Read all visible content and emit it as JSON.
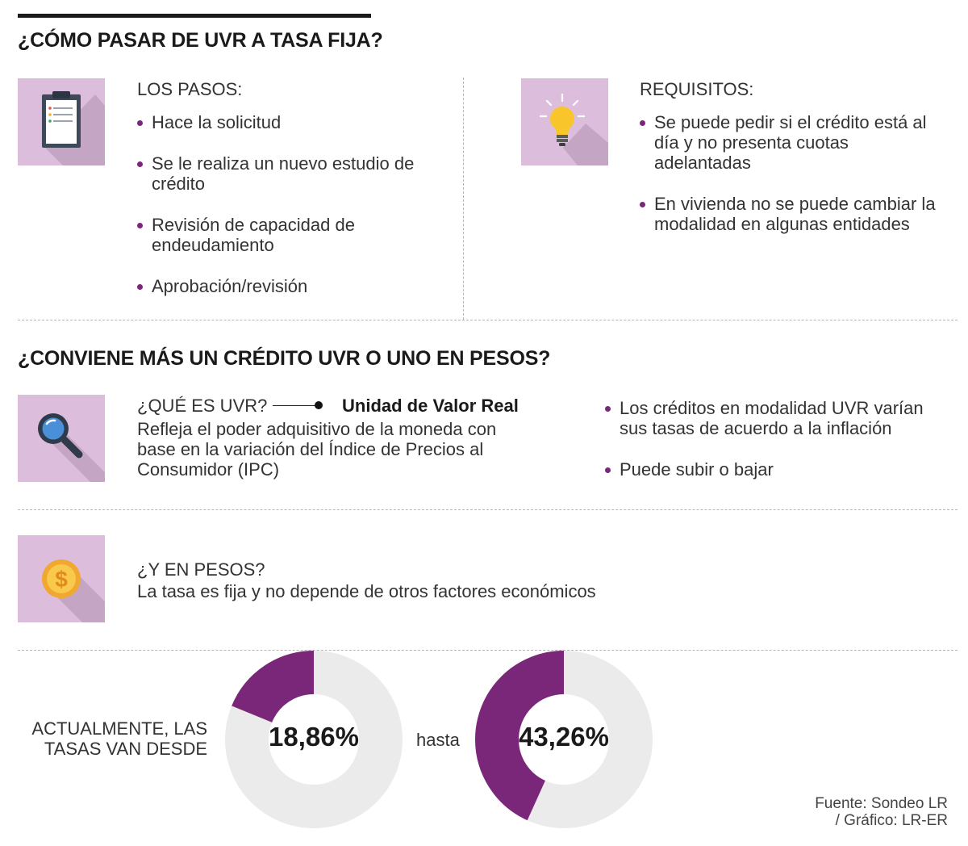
{
  "section1": {
    "title": "¿CÓMO PASAR DE UVR A TASA FIJA?",
    "steps": {
      "label": "LOS PASOS:",
      "icon": "clipboard-icon",
      "items": [
        "Hace la solicitud",
        "Se le realiza un nuevo estudio de crédito",
        "Revisión de capacidad de endeudamiento",
        "Aprobación/revisión"
      ]
    },
    "requirements": {
      "label": "REQUISITOS:",
      "icon": "lightbulb-icon",
      "items": [
        "Se puede pedir si el crédito está al día y no presenta cuotas adelantadas",
        "En vivienda no se puede cambiar la modalidad en algunas entidades"
      ]
    }
  },
  "section2": {
    "title": "¿CONVIENE MÁS UN CRÉDITO UVR O UNO EN PESOS?",
    "uvr": {
      "label": "¿QUÉ ES UVR?",
      "definition": "Unidad de Valor Real",
      "description": "Refleja el poder adquisitivo de la moneda con base en la variación del Índice de Precios al Consumidor (IPC)",
      "icon": "magnifier-icon",
      "items": [
        "Los créditos en modalidad UVR varían sus tasas de acuerdo a la inflación",
        "Puede subir o bajar"
      ]
    },
    "pesos": {
      "label": "¿Y EN PESOS?",
      "description": "La tasa es fija y no depende de otros factores económicos",
      "icon": "dollar-coin-icon"
    }
  },
  "rates": {
    "caption": "ACTUALMENTE, LAS TASAS VAN DESDE",
    "connector": "hasta",
    "min": {
      "label": "18,86%",
      "value": 18.86
    },
    "max": {
      "label": "43,26%",
      "value": 43.26
    }
  },
  "colors": {
    "accent": "#7b2779",
    "tile": "#dcbedc",
    "ring": "#ebebeb"
  },
  "source": {
    "line1": "Fuente: Sondeo LR",
    "line2": "/ Gráfico: LR-ER"
  }
}
